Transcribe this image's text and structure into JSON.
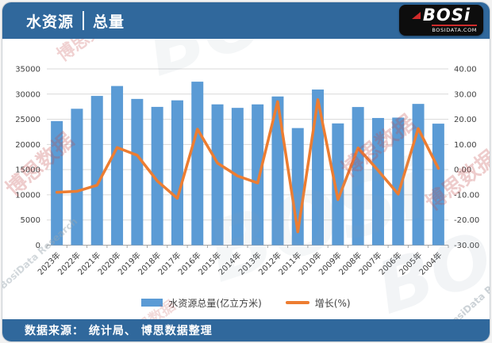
{
  "header": {
    "title_left": "水资源",
    "title_right": "总量",
    "logo_text": "BOSi",
    "logo_sub": "BOSIDATA.COM"
  },
  "footer": {
    "source": "数据来源： 统计局、 博思数据整理"
  },
  "watermarks": [
    "BOSi",
    "博思数据",
    "BosiData Research"
  ],
  "legend": [
    {
      "label": "水资源总量(亿立方米)",
      "color": "#5B9BD5",
      "type": "bar"
    },
    {
      "label": "增长(%)",
      "color": "#ED7D31",
      "type": "line"
    }
  ],
  "colors": {
    "header_blue": "#30689c",
    "bar_blue": "#5B9BD5",
    "line_orange": "#ED7D31",
    "gridline": "#d9d9d9",
    "axis_line": "#a6a6a6",
    "axis_text": "#404040"
  },
  "chart_data": {
    "type": "combo",
    "categories": [
      "2023年",
      "2022年",
      "2021年",
      "2020年",
      "2019年",
      "2018年",
      "2017年",
      "2016年",
      "2015年",
      "2014年",
      "2013年",
      "2012年",
      "2011年",
      "2010年",
      "2009年",
      "2008年",
      "2007年",
      "2006年",
      "2005年",
      "2004年"
    ],
    "series": [
      {
        "name": "水资源总量(亿立方米)",
        "type": "bar",
        "axis": "left",
        "color": "#5B9BD5",
        "values": [
          24640,
          27088,
          29638,
          31605,
          29041,
          27462,
          28761,
          32466,
          27963,
          27267,
          27958,
          29529,
          23257,
          30906,
          24180,
          27434,
          25255,
          25330,
          28053,
          24130
        ]
      },
      {
        "name": "增长(%)",
        "type": "line",
        "axis": "right",
        "color": "#ED7D31",
        "values": [
          -9.0,
          -8.6,
          -6.2,
          8.8,
          5.7,
          -4.5,
          -11.4,
          16.1,
          2.6,
          -2.5,
          -5.3,
          27.0,
          -24.7,
          27.8,
          -11.9,
          8.6,
          -0.3,
          -9.7,
          16.3,
          0.5
        ]
      }
    ],
    "left_axis": {
      "min": 0,
      "max": 35000,
      "ticks": [
        "0",
        "5000",
        "10000",
        "15000",
        "20000",
        "25000",
        "30000",
        "35000"
      ]
    },
    "right_axis": {
      "min": -30,
      "max": 40,
      "ticks": [
        "-30.00",
        "-20.00",
        "-10.00",
        "0.00",
        "10.00",
        "20.00",
        "30.00",
        "40.00"
      ]
    },
    "grid": true,
    "legend_position": "bottom"
  }
}
